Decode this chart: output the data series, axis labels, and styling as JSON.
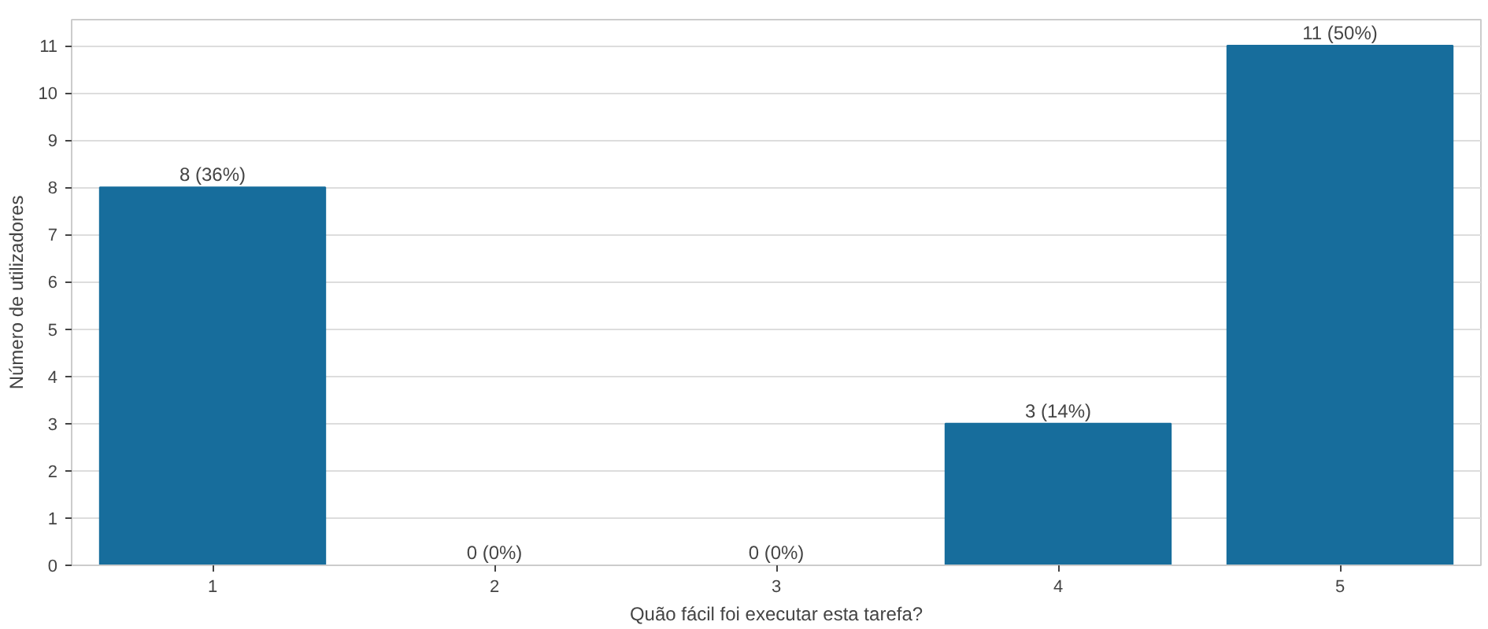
{
  "chart_data": {
    "type": "bar",
    "xlabel": "Quão fácil foi executar esta tarefa?",
    "ylabel": "Número de utilizadores",
    "categories": [
      "1",
      "2",
      "3",
      "4",
      "5"
    ],
    "values": [
      8,
      0,
      0,
      3,
      11
    ],
    "value_labels": [
      "8 (36%)",
      "0 (0%)",
      "0 (0%)",
      "3 (14%)",
      "11 (50%)"
    ],
    "color": "#176d9c",
    "ylim": [
      0,
      11.55
    ],
    "yticks": [
      0,
      1,
      2,
      3,
      4,
      5,
      6,
      7,
      8,
      9,
      10,
      11
    ],
    "grid": "y"
  }
}
